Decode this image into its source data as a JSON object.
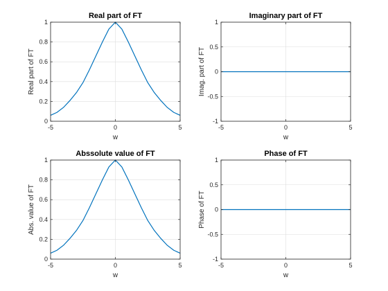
{
  "chart_data": [
    {
      "type": "line",
      "title": "Real part of FT",
      "xlabel": "w",
      "ylabel": "Real part of FT",
      "xlim": [
        -5,
        5
      ],
      "ylim": [
        0,
        1
      ],
      "xticks": [
        -5,
        0,
        5
      ],
      "xtick_labels": [
        "-5",
        "0",
        "5"
      ],
      "yticks": [
        0,
        0.2,
        0.4,
        0.6,
        0.8,
        1
      ],
      "ytick_labels": [
        "0",
        "0.2",
        "0.4",
        "0.6",
        "0.8",
        "1"
      ],
      "grid": true,
      "color": "#0072bd",
      "x": [
        -5,
        -4.5,
        -4,
        -3.5,
        -3,
        -2.5,
        -2,
        -1.5,
        -1,
        -0.5,
        0,
        0.5,
        1,
        1.5,
        2,
        2.5,
        3,
        3.5,
        4,
        4.5,
        5
      ],
      "y": [
        0.06,
        0.09,
        0.14,
        0.21,
        0.29,
        0.39,
        0.52,
        0.66,
        0.8,
        0.93,
        1.0,
        0.93,
        0.8,
        0.66,
        0.52,
        0.39,
        0.29,
        0.21,
        0.14,
        0.09,
        0.06
      ]
    },
    {
      "type": "line",
      "title": "Imaginary part of FT",
      "xlabel": "w",
      "ylabel": "Imag. part of FT",
      "xlim": [
        -5,
        5
      ],
      "ylim": [
        -1,
        1
      ],
      "xticks": [
        -5,
        0,
        5
      ],
      "xtick_labels": [
        "-5",
        "0",
        "5"
      ],
      "yticks": [
        -1,
        -0.5,
        0,
        0.5,
        1
      ],
      "ytick_labels": [
        "-1",
        "-0.5",
        "0",
        "0.5",
        "1"
      ],
      "grid": true,
      "color": "#0072bd",
      "x": [
        -5,
        5
      ],
      "y": [
        0,
        0
      ]
    },
    {
      "type": "line",
      "title": "Abssolute value of FT",
      "xlabel": "w",
      "ylabel": "Abs. value of FT",
      "xlim": [
        -5,
        5
      ],
      "ylim": [
        0,
        1
      ],
      "xticks": [
        -5,
        0,
        5
      ],
      "xtick_labels": [
        "-5",
        "0",
        "5"
      ],
      "yticks": [
        0,
        0.2,
        0.4,
        0.6,
        0.8,
        1
      ],
      "ytick_labels": [
        "0",
        "0.2",
        "0.4",
        "0.6",
        "0.8",
        "1"
      ],
      "grid": true,
      "color": "#0072bd",
      "x": [
        -5,
        -4.5,
        -4,
        -3.5,
        -3,
        -2.5,
        -2,
        -1.5,
        -1,
        -0.5,
        0,
        0.5,
        1,
        1.5,
        2,
        2.5,
        3,
        3.5,
        4,
        4.5,
        5
      ],
      "y": [
        0.06,
        0.09,
        0.14,
        0.21,
        0.29,
        0.39,
        0.52,
        0.66,
        0.8,
        0.93,
        1.0,
        0.93,
        0.8,
        0.66,
        0.52,
        0.39,
        0.29,
        0.21,
        0.14,
        0.09,
        0.06
      ]
    },
    {
      "type": "line",
      "title": "Phase of FT",
      "xlabel": "w",
      "ylabel": "Phase of FT",
      "xlim": [
        -5,
        5
      ],
      "ylim": [
        -1,
        1
      ],
      "xticks": [
        -5,
        0,
        5
      ],
      "xtick_labels": [
        "-5",
        "0",
        "5"
      ],
      "yticks": [
        -1,
        -0.5,
        0,
        0.5,
        1
      ],
      "ytick_labels": [
        "-1",
        "-0.5",
        "0",
        "0.5",
        "1"
      ],
      "grid": true,
      "color": "#0072bd",
      "x": [
        -5,
        5
      ],
      "y": [
        0,
        0
      ]
    }
  ]
}
